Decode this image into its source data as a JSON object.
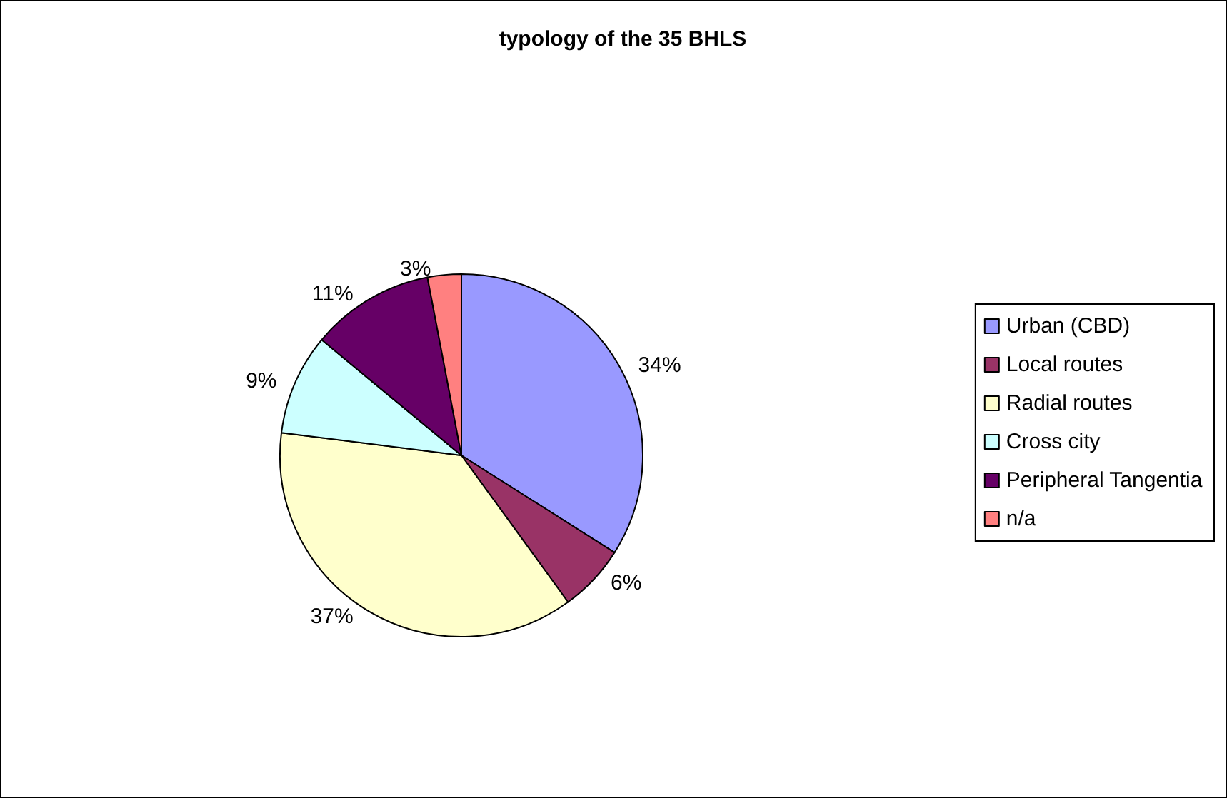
{
  "chart_data": {
    "type": "pie",
    "title": "typology of the 35 BHLS",
    "categories": [
      "Urban (CBD)",
      "Local routes",
      "Radial routes",
      "Cross city",
      "Peripheral Tangentia",
      "n/a"
    ],
    "values": [
      34,
      6,
      37,
      9,
      11,
      3
    ],
    "value_labels": [
      "34%",
      "6%",
      "37%",
      "9%",
      "11%",
      "3%"
    ],
    "colors": [
      "#9999ff",
      "#993366",
      "#ffffcc",
      "#ccffff",
      "#660066",
      "#ff8080"
    ],
    "legend": "right"
  }
}
